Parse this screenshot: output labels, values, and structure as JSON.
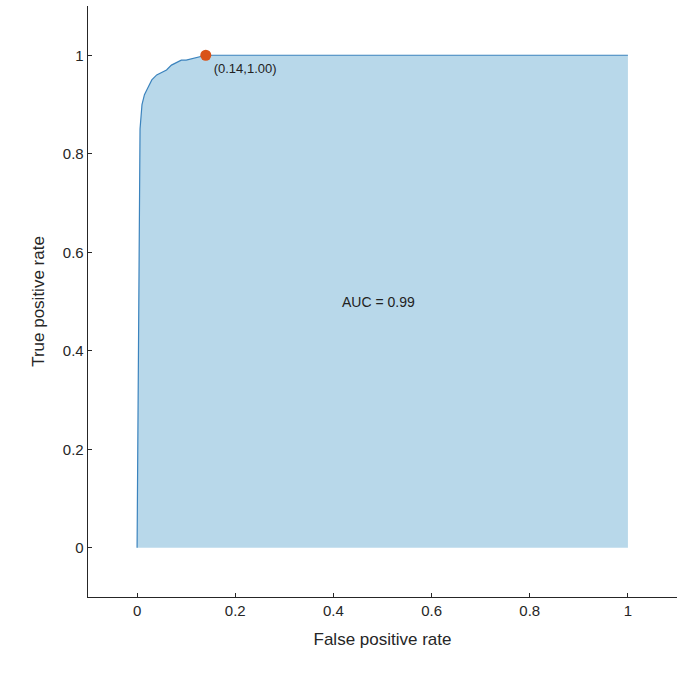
{
  "chart_data": {
    "type": "line",
    "x_label": "False positive rate",
    "y_label": "True positive rate",
    "xlim": [
      -0.1,
      1.1
    ],
    "ylim": [
      -0.1,
      1.1
    ],
    "xticks": [
      0,
      0.2,
      0.4,
      0.6,
      0.8,
      1
    ],
    "yticks": [
      0,
      0.2,
      0.4,
      0.6,
      0.8,
      1
    ],
    "grid": false,
    "annotations": [
      "AUC = 0.99"
    ],
    "series": [
      {
        "type": "area",
        "color": "#3b83bd",
        "x": [
          0,
          0.003,
          0.006,
          0.01,
          0.015,
          0.02,
          0.03,
          0.04,
          0.05,
          0.06,
          0.07,
          0.08,
          0.09,
          0.1,
          0.12,
          0.14,
          0.2,
          0.4,
          0.6,
          0.8,
          1
        ],
        "values": [
          0,
          0.5,
          0.85,
          0.9,
          0.92,
          0.93,
          0.95,
          0.96,
          0.965,
          0.97,
          0.98,
          0.985,
          0.99,
          0.99,
          0.995,
          1,
          1,
          1,
          1,
          1,
          1
        ]
      },
      {
        "type": "scatter",
        "color": "#d95319",
        "marker": "circle",
        "x": [
          0.14
        ],
        "values": [
          1.0
        ],
        "value_labels": [
          "(0.14,1.00)"
        ]
      }
    ]
  }
}
